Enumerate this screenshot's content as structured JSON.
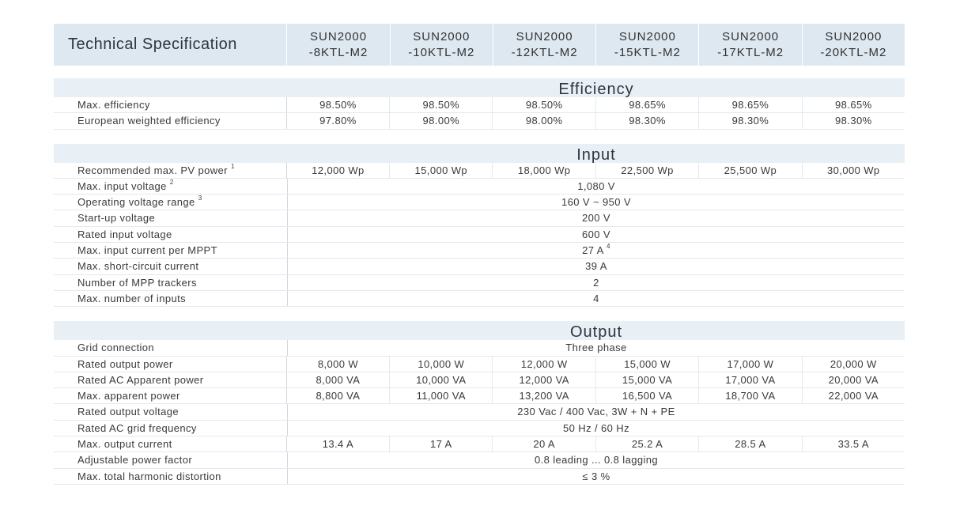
{
  "header": {
    "title": "Technical Specification",
    "models": [
      {
        "line1": "SUN2000",
        "line2": "-8KTL-M2"
      },
      {
        "line1": "SUN2000",
        "line2": "-10KTL-M2"
      },
      {
        "line1": "SUN2000",
        "line2": "-12KTL-M2"
      },
      {
        "line1": "SUN2000",
        "line2": "-15KTL-M2"
      },
      {
        "line1": "SUN2000",
        "line2": "-17KTL-M2"
      },
      {
        "line1": "SUN2000",
        "line2": "-20KTL-M2"
      }
    ]
  },
  "efficiency": {
    "title": "Efficiency",
    "rows": [
      {
        "label": "Max. efficiency",
        "values": [
          "98.50%",
          "98.50%",
          "98.50%",
          "98.65%",
          "98.65%",
          "98.65%"
        ]
      },
      {
        "label": "European weighted efficiency",
        "values": [
          "97.80%",
          "98.00%",
          "98.00%",
          "98.30%",
          "98.30%",
          "98.30%"
        ]
      }
    ]
  },
  "input": {
    "title": "Input",
    "rows": [
      {
        "label": "Recommended max. PV power",
        "sup": "1",
        "values": [
          "12,000 Wp",
          "15,000 Wp",
          "18,000 Wp",
          "22,500 Wp",
          "25,500 Wp",
          "30,000 Wp"
        ]
      },
      {
        "label": "Max. input voltage",
        "sup": "2",
        "value": "1,080 V"
      },
      {
        "label": "Operating voltage range",
        "sup": "3",
        "value": "160 V ~ 950 V"
      },
      {
        "label": "Start-up voltage",
        "value": "200 V"
      },
      {
        "label": "Rated input voltage",
        "value": "600 V"
      },
      {
        "label": "Max. input current per MPPT",
        "value": "27 A",
        "value_sup": "4"
      },
      {
        "label": "Max. short-circuit current",
        "value": "39 A"
      },
      {
        "label": "Number of MPP trackers",
        "value": "2"
      },
      {
        "label": "Max. number of inputs",
        "value": "4"
      }
    ]
  },
  "output": {
    "title": "Output",
    "rows": [
      {
        "label": "Grid connection",
        "value": "Three phase"
      },
      {
        "label": "Rated output power",
        "values": [
          "8,000 W",
          "10,000 W",
          "12,000 W",
          "15,000 W",
          "17,000 W",
          "20,000 W"
        ]
      },
      {
        "label": "Rated AC Apparent power",
        "values": [
          "8,000 VA",
          "10,000 VA",
          "12,000 VA",
          "15,000 VA",
          "17,000 VA",
          "20,000 VA"
        ]
      },
      {
        "label": "Max. apparent power",
        "values": [
          "8,800 VA",
          "11,000 VA",
          "13,200 VA",
          "16,500 VA",
          "18,700 VA",
          "22,000 VA"
        ]
      },
      {
        "label": "Rated output voltage",
        "value": "230 Vac / 400 Vac, 3W + N + PE"
      },
      {
        "label": "Rated AC grid frequency",
        "value": "50 Hz / 60 Hz"
      },
      {
        "label": "Max. output current",
        "values": [
          "13.4 A",
          "17 A",
          "20 A",
          "25.2 A",
          "28.5 A",
          "33.5 A"
        ]
      },
      {
        "label": "Adjustable power factor",
        "value": "0.8 leading ... 0.8 lagging"
      },
      {
        "label": "Max. total harmonic distortion",
        "value": "≤ 3 %"
      }
    ]
  }
}
